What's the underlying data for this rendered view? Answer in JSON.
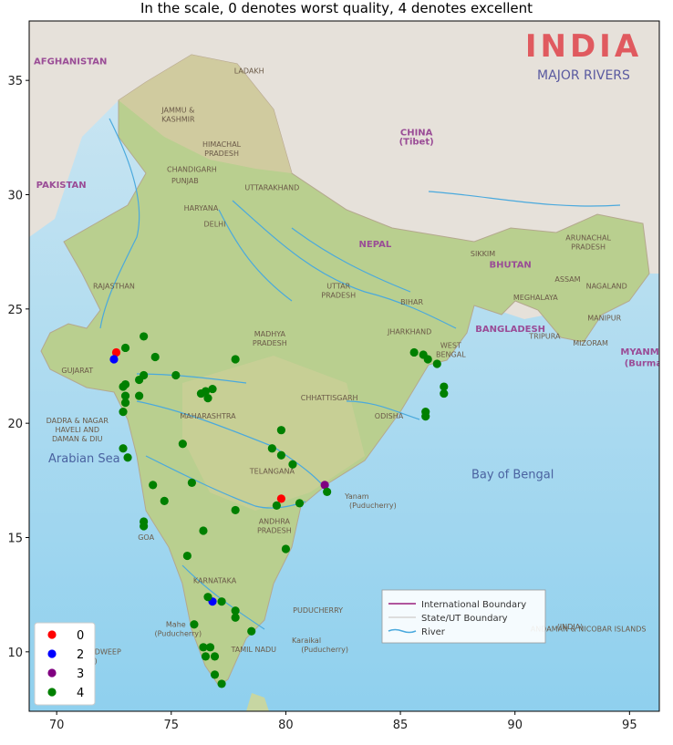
{
  "title": "In the scale, 0 denotes worst quality, 4 denotes excellent",
  "map": {
    "heading": "INDIA",
    "subheading": "MAJOR RIVERS",
    "legend": [
      "International Boundary",
      "State/UT Boundary",
      "River"
    ],
    "seas": [
      {
        "name": "Arabian Sea",
        "lon": 71.2,
        "lat": 18.3
      },
      {
        "name": "Bay of Bengal",
        "lon": 89.9,
        "lat": 17.6
      }
    ],
    "countries": [
      {
        "name": "AFGHANISTAN",
        "lon": 70.6,
        "lat": 35.7
      },
      {
        "name": "PAKISTAN",
        "lon": 70.2,
        "lat": 30.3
      },
      {
        "name": "CHINA",
        "lon": 85.7,
        "lat": 32.6
      },
      {
        "name": "(Tibet)",
        "lon": 85.7,
        "lat": 32.2
      },
      {
        "name": "NEPAL",
        "lon": 83.9,
        "lat": 27.7
      },
      {
        "name": "BHUTAN",
        "lon": 89.8,
        "lat": 26.8
      },
      {
        "name": "BANGLADESH",
        "lon": 89.8,
        "lat": 24.0
      },
      {
        "name": "MYANMA",
        "lon": 95.6,
        "lat": 23.0
      },
      {
        "name": "(Burma",
        "lon": 95.6,
        "lat": 22.5
      }
    ],
    "places": [
      {
        "name": "LADAKH",
        "lon": 78.4,
        "lat": 35.3
      },
      {
        "name": "JAMMU &",
        "lon": 75.3,
        "lat": 33.6
      },
      {
        "name": "KASHMIR",
        "lon": 75.3,
        "lat": 33.2
      },
      {
        "name": "HIMACHAL",
        "lon": 77.2,
        "lat": 32.1
      },
      {
        "name": "PRADESH",
        "lon": 77.2,
        "lat": 31.7
      },
      {
        "name": "CHANDIGARH",
        "lon": 75.9,
        "lat": 31.0
      },
      {
        "name": "PUNJAB",
        "lon": 75.6,
        "lat": 30.5
      },
      {
        "name": "UTTARAKHAND",
        "lon": 79.4,
        "lat": 30.2
      },
      {
        "name": "HARYANA",
        "lon": 76.3,
        "lat": 29.3
      },
      {
        "name": "DELHI",
        "lon": 76.9,
        "lat": 28.6
      },
      {
        "name": "SIKKIM",
        "lon": 88.6,
        "lat": 27.3
      },
      {
        "name": "ARUNACHAL",
        "lon": 93.2,
        "lat": 28.0
      },
      {
        "name": "PRADESH",
        "lon": 93.2,
        "lat": 27.6
      },
      {
        "name": "ASSAM",
        "lon": 92.3,
        "lat": 26.2
      },
      {
        "name": "NAGALAND",
        "lon": 94.0,
        "lat": 25.9
      },
      {
        "name": "MEGHALAYA",
        "lon": 90.9,
        "lat": 25.4
      },
      {
        "name": "MANIPUR",
        "lon": 93.9,
        "lat": 24.5
      },
      {
        "name": "TRIPURA",
        "lon": 91.3,
        "lat": 23.7
      },
      {
        "name": "MIZORAM",
        "lon": 93.3,
        "lat": 23.4
      },
      {
        "name": "RAJASTHAN",
        "lon": 72.5,
        "lat": 25.9
      },
      {
        "name": "UTTAR",
        "lon": 82.3,
        "lat": 25.9
      },
      {
        "name": "PRADESH",
        "lon": 82.3,
        "lat": 25.5
      },
      {
        "name": "BIHAR",
        "lon": 85.5,
        "lat": 25.2
      },
      {
        "name": "JHARKHAND",
        "lon": 85.4,
        "lat": 23.9
      },
      {
        "name": "WEST",
        "lon": 87.2,
        "lat": 23.3
      },
      {
        "name": "BENGAL",
        "lon": 87.2,
        "lat": 22.9
      },
      {
        "name": "GUJARAT",
        "lon": 70.9,
        "lat": 22.2
      },
      {
        "name": "MADHYA",
        "lon": 79.3,
        "lat": 23.8
      },
      {
        "name": "PRADESH",
        "lon": 79.3,
        "lat": 23.4
      },
      {
        "name": "CHHATTISGARH",
        "lon": 81.9,
        "lat": 21.0
      },
      {
        "name": "ODISHA",
        "lon": 84.5,
        "lat": 20.2
      },
      {
        "name": "MAHARASHTRA",
        "lon": 76.6,
        "lat": 20.2
      },
      {
        "name": "DADRA & NAGAR",
        "lon": 70.9,
        "lat": 20.0
      },
      {
        "name": "HAVELI AND",
        "lon": 70.9,
        "lat": 19.6
      },
      {
        "name": "DAMAN & DIU",
        "lon": 70.9,
        "lat": 19.2
      },
      {
        "name": "TELANGANA",
        "lon": 79.4,
        "lat": 17.8
      },
      {
        "name": "Yanam",
        "lon": 83.1,
        "lat": 16.7
      },
      {
        "name": "(Puducherry)",
        "lon": 83.8,
        "lat": 16.3
      },
      {
        "name": "ANDHRA",
        "lon": 79.5,
        "lat": 15.6
      },
      {
        "name": "PRADESH",
        "lon": 79.5,
        "lat": 15.2
      },
      {
        "name": "GOA",
        "lon": 73.9,
        "lat": 14.9
      },
      {
        "name": "KARNATAKA",
        "lon": 76.9,
        "lat": 13.0
      },
      {
        "name": "PUDUCHERRY",
        "lon": 81.4,
        "lat": 11.7
      },
      {
        "name": "Mahe",
        "lon": 75.2,
        "lat": 11.1
      },
      {
        "name": "(Puducherry)",
        "lon": 75.3,
        "lat": 10.7
      },
      {
        "name": "TAMIL NADU",
        "lon": 78.6,
        "lat": 10.0
      },
      {
        "name": "Karaikal",
        "lon": 80.9,
        "lat": 10.4
      },
      {
        "name": "(Puducherry)",
        "lon": 81.7,
        "lat": 10.0
      },
      {
        "name": "LAKSHADWEEP",
        "lon": 71.6,
        "lat": 9.9
      },
      {
        "name": "(INDIA)",
        "lon": 71.2,
        "lat": 9.5
      },
      {
        "name": "ANDAMAN & NICOBAR ISLANDS",
        "lon": 93.2,
        "lat": 10.9
      },
      {
        "name": "(INDIA)",
        "lon": 92.4,
        "lat": 11.0
      }
    ]
  },
  "colors": {
    "0": "#ff0000",
    "2": "#0000ff",
    "3": "#800080",
    "4": "#008000"
  },
  "chart_data": {
    "type": "scatter",
    "title": "In the scale, 0 denotes worst quality, 4 denotes excellent",
    "xlabel": "",
    "ylabel": "",
    "xlim": [
      68.8,
      96.3
    ],
    "ylim": [
      7.4,
      37.6
    ],
    "xticks": [
      70,
      75,
      80,
      85,
      90,
      95
    ],
    "yticks": [
      10,
      15,
      20,
      25,
      30,
      35
    ],
    "grid": false,
    "legend_position": "bottom-left",
    "series": [
      {
        "name": "0",
        "color": "#ff0000",
        "points": [
          [
            72.6,
            23.1
          ],
          [
            79.8,
            16.7
          ]
        ]
      },
      {
        "name": "2",
        "color": "#0000ff",
        "points": [
          [
            72.5,
            22.8
          ],
          [
            76.8,
            12.2
          ]
        ]
      },
      {
        "name": "3",
        "color": "#800080",
        "points": [
          [
            81.7,
            17.3
          ]
        ]
      },
      {
        "name": "4",
        "color": "#008000",
        "points": [
          [
            73.0,
            23.3
          ],
          [
            73.8,
            23.8
          ],
          [
            74.3,
            22.9
          ],
          [
            73.8,
            22.1
          ],
          [
            73.6,
            21.9
          ],
          [
            73.0,
            21.7
          ],
          [
            72.9,
            21.6
          ],
          [
            73.0,
            21.2
          ],
          [
            73.6,
            21.2
          ],
          [
            73.0,
            20.9
          ],
          [
            72.9,
            20.5
          ],
          [
            75.2,
            22.1
          ],
          [
            76.3,
            21.3
          ],
          [
            76.5,
            21.4
          ],
          [
            76.6,
            21.1
          ],
          [
            76.8,
            21.5
          ],
          [
            77.8,
            22.8
          ],
          [
            79.8,
            19.7
          ],
          [
            79.4,
            18.9
          ],
          [
            79.8,
            18.6
          ],
          [
            80.3,
            18.2
          ],
          [
            81.8,
            17.0
          ],
          [
            80.6,
            16.5
          ],
          [
            79.6,
            16.4
          ],
          [
            72.9,
            18.9
          ],
          [
            73.1,
            18.5
          ],
          [
            75.5,
            19.1
          ],
          [
            74.2,
            17.3
          ],
          [
            74.7,
            16.6
          ],
          [
            75.9,
            17.4
          ],
          [
            77.8,
            16.2
          ],
          [
            73.8,
            15.7
          ],
          [
            73.8,
            15.5
          ],
          [
            76.4,
            15.3
          ],
          [
            75.7,
            14.2
          ],
          [
            80.0,
            14.5
          ],
          [
            76.6,
            12.4
          ],
          [
            77.2,
            12.2
          ],
          [
            77.8,
            11.8
          ],
          [
            77.8,
            11.5
          ],
          [
            78.5,
            10.9
          ],
          [
            76.0,
            11.2
          ],
          [
            76.4,
            10.2
          ],
          [
            76.7,
            10.2
          ],
          [
            76.5,
            9.8
          ],
          [
            76.9,
            9.8
          ],
          [
            76.9,
            9.0
          ],
          [
            77.2,
            8.6
          ],
          [
            85.6,
            23.1
          ],
          [
            86.0,
            23.0
          ],
          [
            86.2,
            22.8
          ],
          [
            86.6,
            22.6
          ],
          [
            86.9,
            21.6
          ],
          [
            86.9,
            21.3
          ],
          [
            86.1,
            20.5
          ],
          [
            86.1,
            20.3
          ]
        ]
      }
    ]
  }
}
